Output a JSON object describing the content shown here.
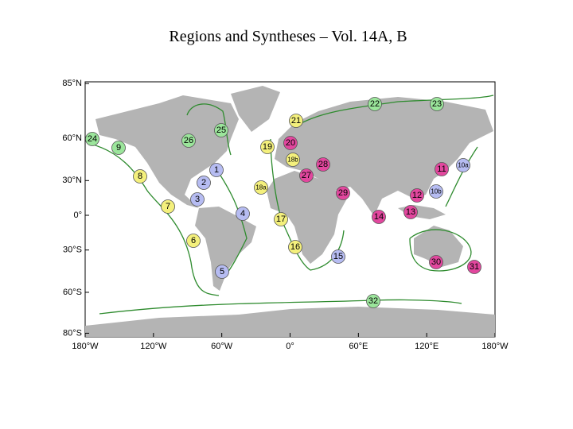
{
  "title": "Regions and Syntheses – Vol. 14A, B",
  "map": {
    "lon_ticks": [
      {
        "value": -180,
        "label": "180°W"
      },
      {
        "value": -120,
        "label": "120°W"
      },
      {
        "value": -60,
        "label": "60°W"
      },
      {
        "value": 0,
        "label": "0°"
      },
      {
        "value": 60,
        "label": "60°E"
      },
      {
        "value": 120,
        "label": "120°E"
      },
      {
        "value": 180,
        "label": "180°W"
      }
    ],
    "lat_ticks": [
      {
        "value": 85,
        "label": "85°N"
      },
      {
        "value": 60,
        "label": "60°N"
      },
      {
        "value": 30,
        "label": "30°N"
      },
      {
        "value": 0,
        "label": "0°"
      },
      {
        "value": -30,
        "label": "30°S"
      },
      {
        "value": -60,
        "label": "60°S"
      },
      {
        "value": -80,
        "label": "80°S"
      }
    ],
    "regions": [
      {
        "label": "24",
        "color": "#9be59b"
      },
      {
        "label": "9",
        "color": "#9be59b"
      },
      {
        "label": "23",
        "color": "#9be59b"
      },
      {
        "label": "22",
        "color": "#9be59b"
      },
      {
        "label": "26",
        "color": "#9be59b"
      },
      {
        "label": "25",
        "color": "#9be59b"
      },
      {
        "label": "32",
        "color": "#9be59b"
      },
      {
        "label": "21",
        "color": "#f4f07c"
      },
      {
        "label": "19",
        "color": "#f4f07c"
      },
      {
        "label": "8",
        "color": "#f4f07c"
      },
      {
        "label": "7",
        "color": "#f4f07c"
      },
      {
        "label": "6",
        "color": "#f4f07c"
      },
      {
        "label": "17",
        "color": "#f4f07c"
      },
      {
        "label": "16",
        "color": "#f4f07c"
      },
      {
        "label": "18a",
        "color": "#f4f07c"
      },
      {
        "label": "18b",
        "color": "#f4f07c"
      },
      {
        "label": "1",
        "color": "#b6bcf2"
      },
      {
        "label": "2",
        "color": "#b6bcf2"
      },
      {
        "label": "3",
        "color": "#b6bcf2"
      },
      {
        "label": "4",
        "color": "#b6bcf2"
      },
      {
        "label": "5",
        "color": "#b6bcf2"
      },
      {
        "label": "15",
        "color": "#b6bcf2"
      },
      {
        "label": "10a",
        "color": "#b6bcf2"
      },
      {
        "label": "10b",
        "color": "#b6bcf2"
      },
      {
        "label": "20",
        "color": "#e2479e"
      },
      {
        "label": "28",
        "color": "#e2479e"
      },
      {
        "label": "27",
        "color": "#e2479e"
      },
      {
        "label": "29",
        "color": "#e2479e"
      },
      {
        "label": "14",
        "color": "#e2479e"
      },
      {
        "label": "13",
        "color": "#e2479e"
      },
      {
        "label": "12",
        "color": "#e2479e"
      },
      {
        "label": "11",
        "color": "#e2479e"
      },
      {
        "label": "30",
        "color": "#e2479e"
      },
      {
        "label": "31",
        "color": "#e2479e"
      }
    ]
  }
}
